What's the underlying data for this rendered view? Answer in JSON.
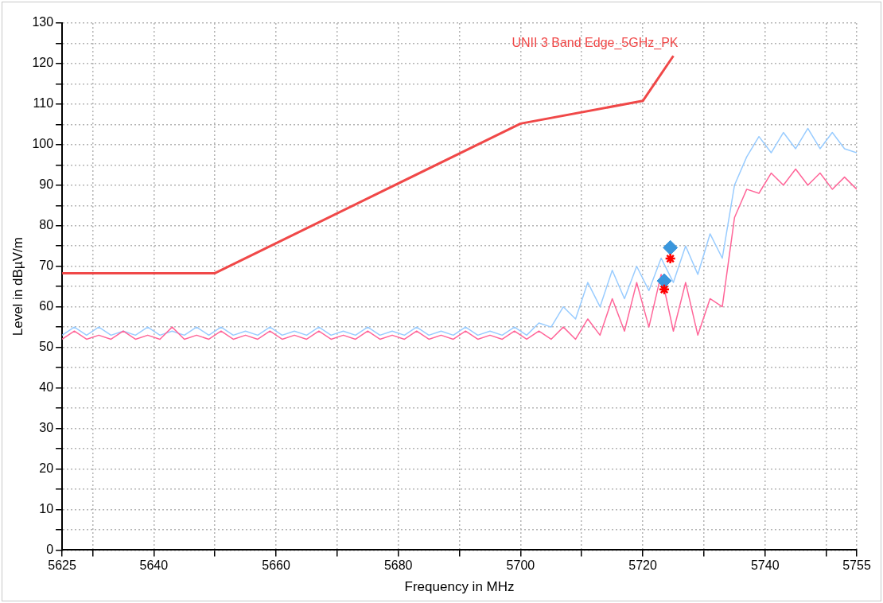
{
  "chart_data": {
    "type": "line",
    "xlabel": "Frequency in MHz",
    "ylabel": "Level in dBµV/m",
    "xlim": [
      5625,
      5755
    ],
    "ylim": [
      0,
      130
    ],
    "xticks": [
      5625,
      {
        "value": 5630,
        "label": null
      },
      5640,
      {
        "value": 5650,
        "label": null
      },
      5660,
      {
        "value": 5670,
        "label": null
      },
      5680,
      {
        "value": 5690,
        "label": null
      },
      5700,
      {
        "value": 5710,
        "label": null
      },
      5720,
      {
        "value": 5730,
        "label": null
      },
      5740,
      {
        "value": 5750,
        "label": null
      },
      5755
    ],
    "yticks": [
      0,
      {
        "value": 5,
        "label": null
      },
      10,
      {
        "value": 15,
        "label": null
      },
      20,
      {
        "value": 25,
        "label": null
      },
      30,
      {
        "value": 35,
        "label": null
      },
      40,
      {
        "value": 45,
        "label": null
      },
      50,
      {
        "value": 55,
        "label": null
      },
      60,
      {
        "value": 65,
        "label": null
      },
      70,
      {
        "value": 75,
        "label": null
      },
      80,
      {
        "value": 85,
        "label": null
      },
      90,
      {
        "value": 95,
        "label": null
      },
      100,
      {
        "value": 105,
        "label": null
      },
      110,
      {
        "value": 115,
        "label": null
      },
      120,
      {
        "value": 125,
        "label": null
      },
      130
    ],
    "grid": true,
    "legend": false,
    "marker": "none",
    "line_style": "solid",
    "series": [
      {
        "color": "#99ccff",
        "x": [
          5625,
          5627,
          5629,
          5631,
          5633,
          5635,
          5637,
          5639,
          5641,
          5643,
          5645,
          5647,
          5649,
          5651,
          5653,
          5655,
          5657,
          5659,
          5661,
          5663,
          5665,
          5667,
          5669,
          5671,
          5673,
          5675,
          5677,
          5679,
          5681,
          5683,
          5685,
          5687,
          5689,
          5691,
          5693,
          5695,
          5697,
          5699,
          5701,
          5703,
          5705,
          5707,
          5709,
          5711,
          5713,
          5715,
          5717,
          5719,
          5721,
          5723,
          5725,
          5727,
          5729,
          5731,
          5733,
          5735,
          5737,
          5739,
          5741,
          5743,
          5745,
          5747,
          5749,
          5751,
          5753,
          5755
        ],
        "values": [
          53,
          55,
          53,
          55,
          53,
          54,
          53,
          55,
          53,
          54,
          53,
          55,
          53,
          55,
          53,
          54,
          53,
          55,
          53,
          54,
          53,
          55,
          53,
          54,
          53,
          55,
          53,
          54,
          53,
          55,
          53,
          54,
          53,
          55,
          53,
          54,
          53,
          55,
          53,
          56,
          55,
          60,
          57,
          66,
          60,
          69,
          62,
          70,
          64,
          72,
          66,
          75,
          68,
          78,
          72,
          90,
          97,
          102,
          98,
          103,
          99,
          104,
          99,
          103,
          99,
          98
        ]
      },
      {
        "color": "#ff6699",
        "x": [
          5625,
          5627,
          5629,
          5631,
          5633,
          5635,
          5637,
          5639,
          5641,
          5643,
          5645,
          5647,
          5649,
          5651,
          5653,
          5655,
          5657,
          5659,
          5661,
          5663,
          5665,
          5667,
          5669,
          5671,
          5673,
          5675,
          5677,
          5679,
          5681,
          5683,
          5685,
          5687,
          5689,
          5691,
          5693,
          5695,
          5697,
          5699,
          5701,
          5703,
          5705,
          5707,
          5709,
          5711,
          5713,
          5715,
          5717,
          5719,
          5721,
          5723,
          5725,
          5727,
          5729,
          5731,
          5733,
          5735,
          5737,
          5739,
          5741,
          5743,
          5745,
          5747,
          5749,
          5751,
          5753,
          5755
        ],
        "values": [
          52,
          54,
          52,
          53,
          52,
          54,
          52,
          53,
          52,
          55,
          52,
          53,
          52,
          54,
          52,
          53,
          52,
          54,
          52,
          53,
          52,
          54,
          52,
          53,
          52,
          54,
          52,
          53,
          52,
          54,
          52,
          53,
          52,
          54,
          52,
          53,
          52,
          54,
          52,
          54,
          52,
          55,
          52,
          57,
          53,
          62,
          54,
          66,
          55,
          68,
          54,
          66,
          53,
          62,
          60,
          82,
          89,
          88,
          93,
          90,
          94,
          90,
          93,
          89,
          92,
          89
        ]
      },
      {
        "name": "UNII 3 Band Edge_5GHz_PK",
        "color": "#f04848",
        "x": [
          5625,
          5650,
          5700,
          5720,
          5725
        ],
        "values": [
          68.3,
          68.3,
          105.2,
          110.8,
          121.9
        ]
      },
      {
        "type": "scatter",
        "marker": "diamond",
        "color": "#3a96dc",
        "x": [
          5724.5,
          5723.5
        ],
        "values": [
          74.6,
          66.4
        ]
      },
      {
        "type": "scatter",
        "marker": "cross",
        "color": "#ff0000",
        "x": [
          5724.5,
          5723.5
        ],
        "values": [
          71.9,
          64.3
        ]
      }
    ]
  }
}
